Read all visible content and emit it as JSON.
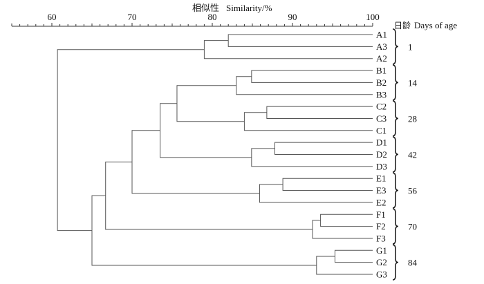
{
  "axis": {
    "title_zh": "相似性",
    "title_en": "Similarity/%",
    "min": 55,
    "max": 100,
    "major_ticks": [
      60,
      70,
      80,
      90,
      100
    ],
    "minor_step": 1
  },
  "age_header": {
    "zh": "日龄",
    "en": "Days of age"
  },
  "leaves": [
    "A1",
    "A3",
    "A2",
    "B1",
    "B2",
    "B3",
    "C2",
    "C3",
    "C1",
    "D1",
    "D2",
    "D3",
    "E1",
    "E3",
    "E2",
    "F1",
    "F2",
    "F3",
    "G1",
    "G2",
    "G3"
  ],
  "groups": [
    {
      "label": "1",
      "first": 0,
      "last": 2
    },
    {
      "label": "14",
      "first": 3,
      "last": 5
    },
    {
      "label": "28",
      "first": 6,
      "last": 8
    },
    {
      "label": "42",
      "first": 9,
      "last": 11
    },
    {
      "label": "56",
      "first": 12,
      "last": 14
    },
    {
      "label": "70",
      "first": 15,
      "last": 17
    },
    {
      "label": "84",
      "first": 18,
      "last": 20
    }
  ],
  "merges": [
    {
      "a": "L0",
      "b": "L1",
      "sim": 82.0
    },
    {
      "a": "M0",
      "b": "L2",
      "sim": 79.0
    },
    {
      "a": "L3",
      "b": "L4",
      "sim": 84.9
    },
    {
      "a": "M2",
      "b": "L5",
      "sim": 83.0
    },
    {
      "a": "L6",
      "b": "L7",
      "sim": 86.8
    },
    {
      "a": "M4",
      "b": "L8",
      "sim": 84.0
    },
    {
      "a": "M3",
      "b": "M5",
      "sim": 75.6
    },
    {
      "a": "L9",
      "b": "L10",
      "sim": 87.8
    },
    {
      "a": "M7",
      "b": "L11",
      "sim": 84.9
    },
    {
      "a": "M6",
      "b": "M8",
      "sim": 73.5
    },
    {
      "a": "L12",
      "b": "L13",
      "sim": 88.8
    },
    {
      "a": "M10",
      "b": "L14",
      "sim": 85.9
    },
    {
      "a": "M9",
      "b": "M11",
      "sim": 70.0
    },
    {
      "a": "L15",
      "b": "L16",
      "sim": 93.5
    },
    {
      "a": "M13",
      "b": "L17",
      "sim": 92.5
    },
    {
      "a": "M12",
      "b": "M14",
      "sim": 66.7
    },
    {
      "a": "L18",
      "b": "L19",
      "sim": 95.3
    },
    {
      "a": "M16",
      "b": "L20",
      "sim": 93.0
    },
    {
      "a": "M15",
      "b": "M17",
      "sim": 65.0
    },
    {
      "a": "M1",
      "b": "M18",
      "sim": 60.7
    }
  ]
}
